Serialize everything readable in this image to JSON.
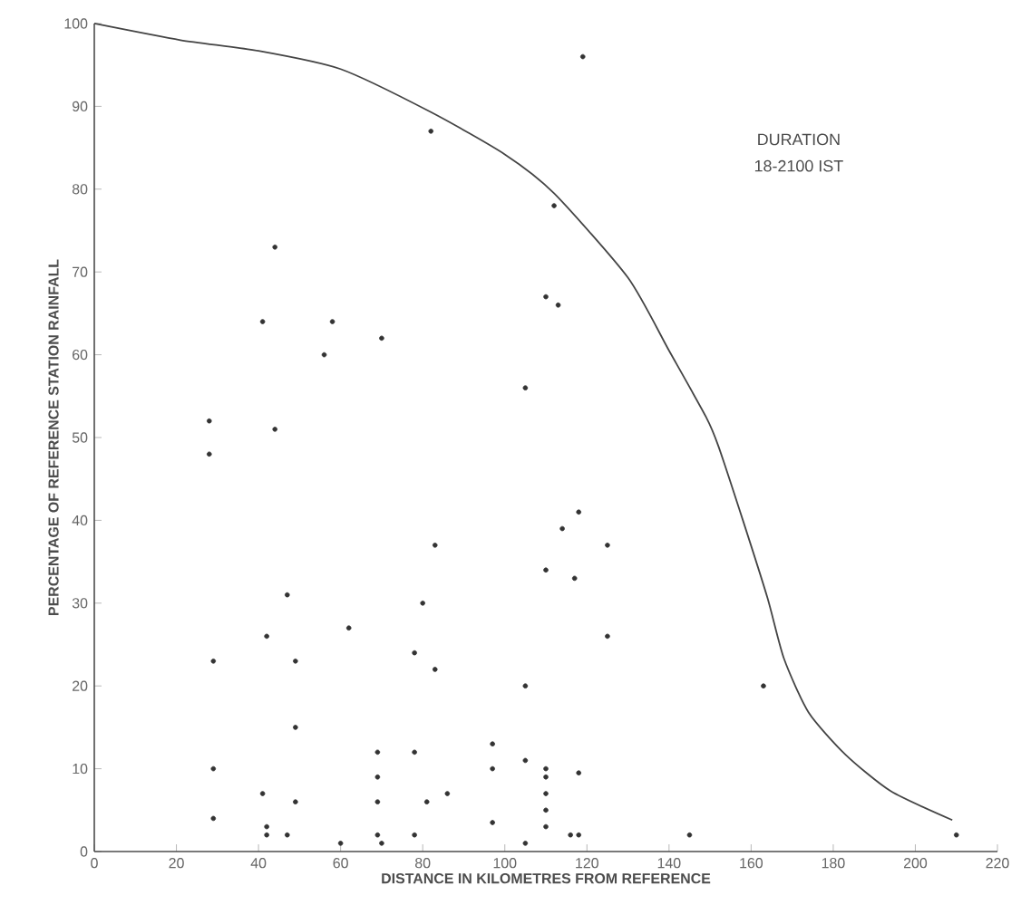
{
  "chart_data": {
    "type": "scatter",
    "xlabel": "DISTANCE IN KILOMETRES FROM REFERENCE",
    "ylabel": "PERCENTAGE OF REFERENCE STATION RAINFALL",
    "annotations": [
      "DURATION",
      "18-2100 IST"
    ],
    "xlim": [
      0,
      220
    ],
    "ylim": [
      0,
      100
    ],
    "xticks": [
      0,
      20,
      40,
      60,
      80,
      100,
      120,
      140,
      160,
      180,
      200,
      220
    ],
    "yticks": [
      0,
      10,
      20,
      30,
      40,
      50,
      60,
      70,
      80,
      90,
      100
    ],
    "series": [
      {
        "color": "#333333",
        "marker": "circle",
        "x": [
          28,
          28,
          29,
          29,
          29,
          41,
          44,
          44,
          42,
          47,
          49,
          49,
          49,
          41,
          42,
          42,
          47,
          56,
          58,
          62,
          60,
          70,
          69,
          69,
          69,
          69,
          70,
          82,
          83,
          80,
          78,
          83,
          78,
          81,
          86,
          78,
          97,
          97,
          97,
          105,
          105,
          105,
          105,
          110,
          113,
          112,
          119,
          118,
          114,
          125,
          110,
          117,
          125,
          110,
          110,
          110,
          110,
          110,
          118,
          116,
          118,
          145,
          163,
          210
        ],
        "values": [
          52,
          48,
          23,
          10,
          4,
          64,
          73,
          51,
          26,
          31,
          23,
          15,
          6,
          7,
          3,
          2,
          2,
          60,
          64,
          27,
          1,
          62,
          12,
          9,
          6,
          2,
          1,
          87,
          37,
          30,
          24,
          22,
          12,
          6,
          7,
          2,
          13,
          10,
          3.5,
          56,
          20,
          11,
          1,
          67,
          66,
          78,
          96,
          41,
          39,
          37,
          34,
          33,
          26,
          10,
          9,
          7,
          5,
          3,
          9.5,
          2,
          2,
          2,
          20,
          2
        ]
      },
      {
        "type": "line",
        "color": "#444444",
        "marker": "none",
        "line_style": "solid",
        "x": [
          0,
          21,
          40,
          60,
          82,
          100,
          112,
          130,
          140,
          149,
          152,
          158,
          164,
          168,
          174,
          183,
          194,
          209
        ],
        "values": [
          100,
          98,
          96.7,
          94.5,
          89.3,
          84.2,
          79.5,
          69.3,
          60.5,
          52.5,
          49,
          40,
          30.6,
          23.3,
          16.8,
          11.7,
          7.3,
          3.8
        ]
      }
    ]
  }
}
